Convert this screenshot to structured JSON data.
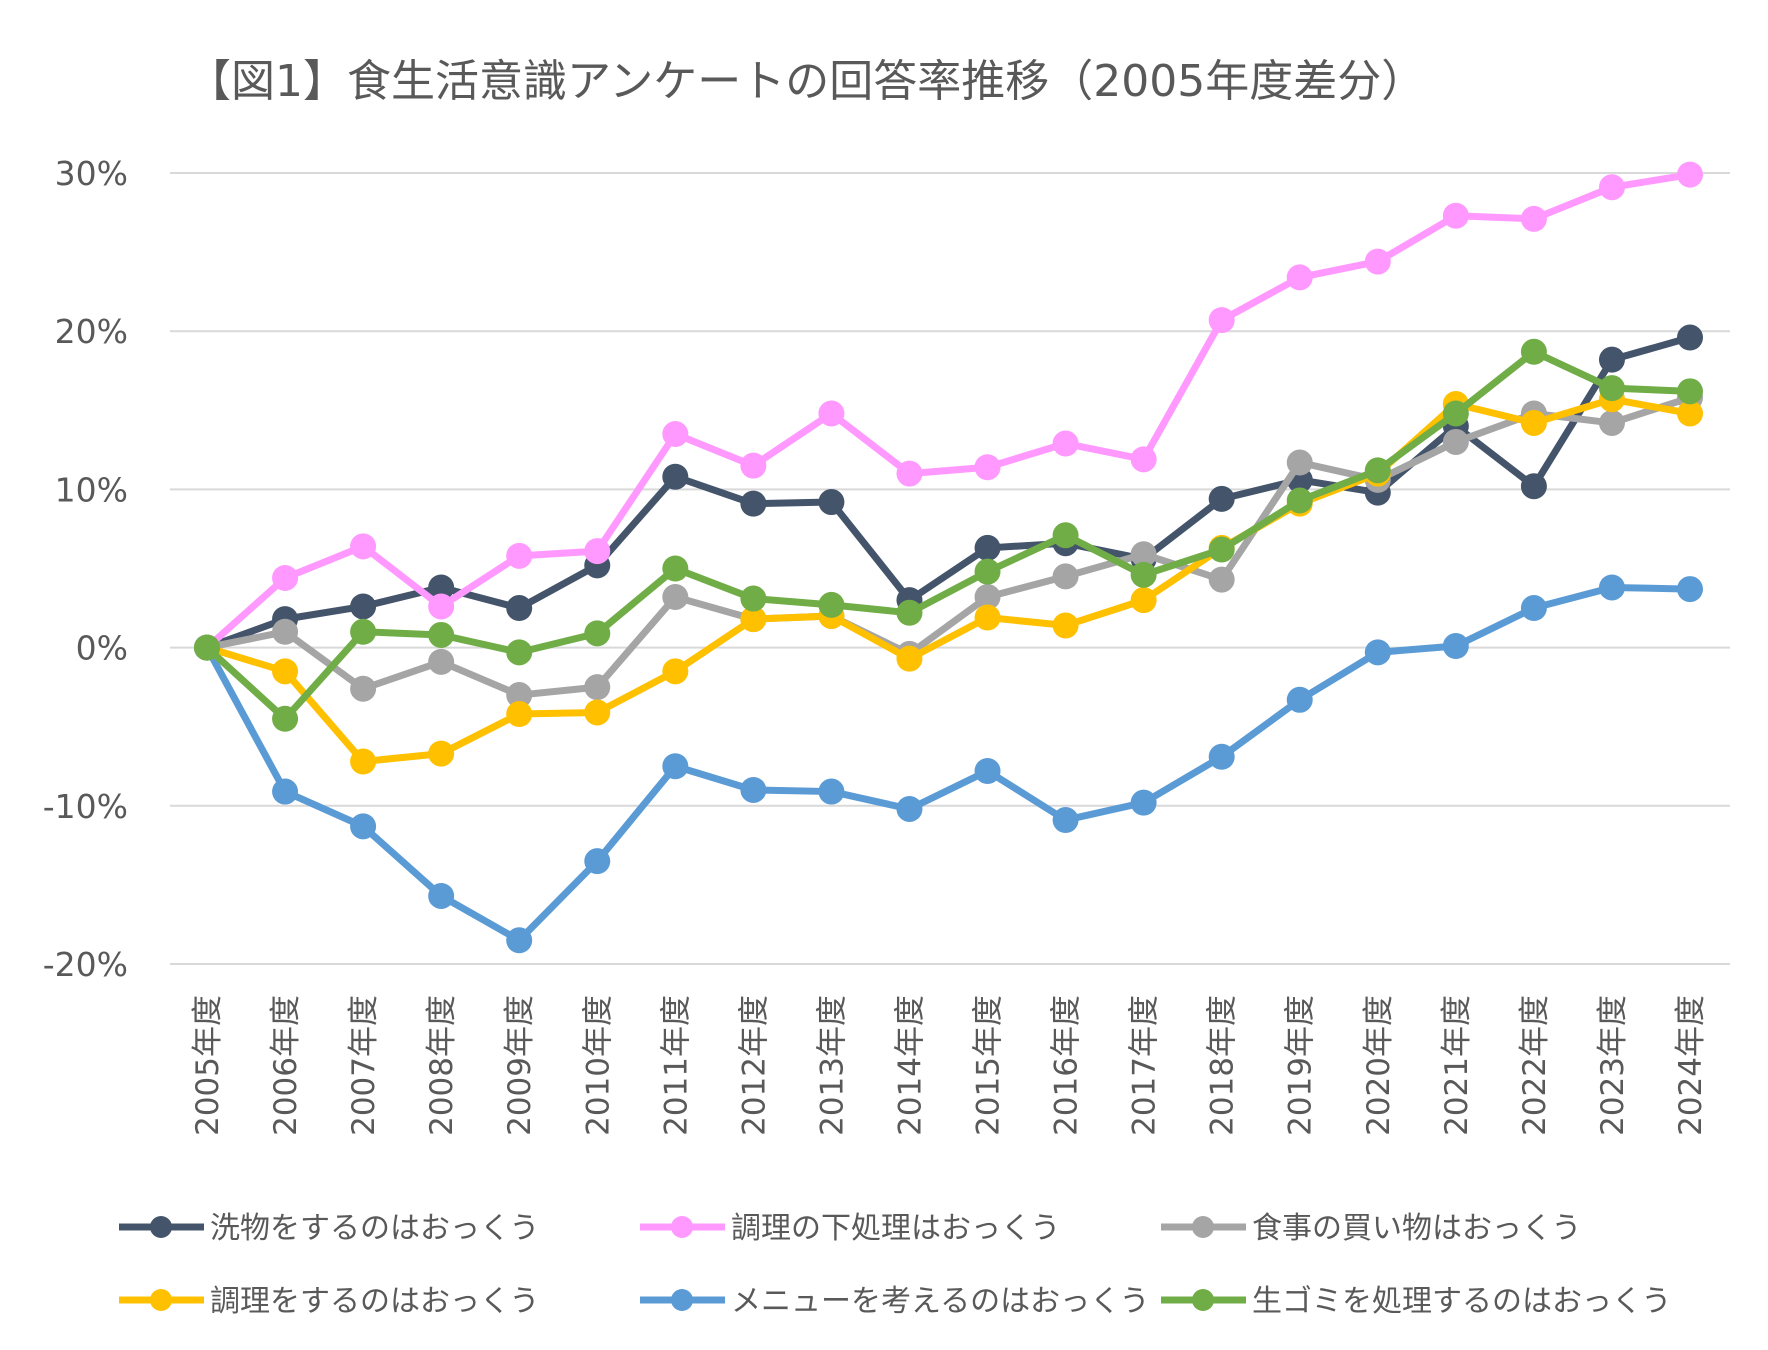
{
  "chart_data": {
    "type": "line",
    "title": "【図1】食生活意識アンケートの回答率推移（2005年度差分）",
    "xlabel": "",
    "ylabel": "",
    "ylim": [
      -0.2,
      0.3
    ],
    "yticks": [
      0.3,
      0.2,
      0.1,
      0,
      -0.1,
      -0.2
    ],
    "ytick_labels": [
      "30%",
      "20%",
      "10%",
      "0%",
      "-10%",
      "-20%"
    ],
    "grid": true,
    "legend_position": "bottom",
    "categories": [
      "2005年度",
      "2006年度",
      "2007年度",
      "2008年度",
      "2009年度",
      "2010年度",
      "2011年度",
      "2012年度",
      "2013年度",
      "2014年度",
      "2015年度",
      "2016年度",
      "2017年度",
      "2018年度",
      "2019年度",
      "2020年度",
      "2021年度",
      "2022年度",
      "2023年度",
      "2024年度"
    ],
    "series": [
      {
        "name": "洗物をするのはおっくう",
        "color": "#44546A",
        "values": [
          0,
          0.018,
          0.026,
          0.038,
          0.025,
          0.052,
          0.108,
          0.091,
          0.092,
          0.03,
          0.063,
          0.066,
          0.056,
          0.094,
          0.106,
          0.098,
          0.14,
          0.102,
          0.182,
          0.196
        ]
      },
      {
        "name": "調理の下処理はおっくう",
        "color": "#FF99FF",
        "values": [
          0,
          0.044,
          0.064,
          0.026,
          0.058,
          0.061,
          0.135,
          0.115,
          0.148,
          0.11,
          0.114,
          0.129,
          0.119,
          0.207,
          0.234,
          0.244,
          0.273,
          0.271,
          0.291,
          0.299
        ]
      },
      {
        "name": "食事の買い物はおっくう",
        "color": "#A5A5A5",
        "values": [
          0,
          0.01,
          -0.026,
          -0.009,
          -0.03,
          -0.025,
          0.032,
          0.018,
          0.02,
          -0.004,
          0.032,
          0.045,
          0.059,
          0.043,
          0.117,
          0.106,
          0.13,
          0.148,
          0.142,
          0.158
        ]
      },
      {
        "name": "調理をするのはおっくう",
        "color": "#FFC000",
        "values": [
          0,
          -0.015,
          -0.072,
          -0.067,
          -0.042,
          -0.041,
          -0.015,
          0.018,
          0.02,
          -0.007,
          0.019,
          0.014,
          0.03,
          0.063,
          0.091,
          0.11,
          0.154,
          0.142,
          0.157,
          0.148
        ]
      },
      {
        "name": "メニューを考えるのはおっくう",
        "color": "#5B9BD5",
        "values": [
          0,
          -0.091,
          -0.113,
          -0.157,
          -0.185,
          -0.135,
          -0.075,
          -0.09,
          -0.091,
          -0.102,
          -0.078,
          -0.109,
          -0.098,
          -0.069,
          -0.033,
          -0.003,
          0.001,
          0.025,
          0.038,
          0.037
        ]
      },
      {
        "name": "生ゴミを処理するのはおっくう",
        "color": "#70AD47",
        "values": [
          0,
          -0.045,
          0.01,
          0.008,
          -0.003,
          0.009,
          0.05,
          0.031,
          0.027,
          0.022,
          0.048,
          0.071,
          0.046,
          0.062,
          0.093,
          0.112,
          0.148,
          0.187,
          0.164,
          0.162
        ]
      }
    ]
  }
}
